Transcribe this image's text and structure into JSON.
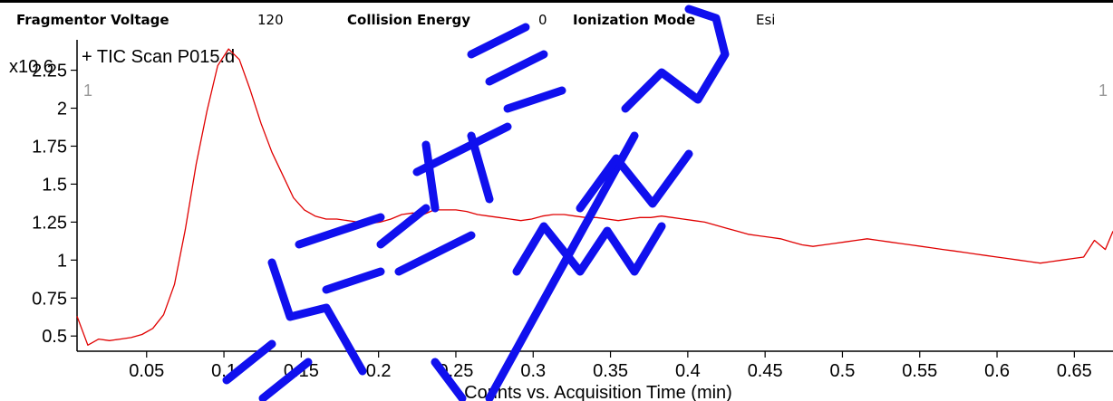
{
  "header": {
    "fields": [
      {
        "label": "Fragmentor Voltage",
        "value": "120"
      },
      {
        "label": "Collision Energy",
        "value": "0"
      },
      {
        "label": "Ionization Mode",
        "value": "Esi"
      }
    ]
  },
  "chart_data": {
    "type": "line",
    "title": "+ TIC Scan P015.d",
    "xlabel": "Counts vs. Acquisition Time (min)",
    "ylabel": "",
    "y_multiplier": "x10 6",
    "xlim": [
      0.005,
      0.675
    ],
    "ylim": [
      0.4,
      2.45
    ],
    "xticks": [
      0.05,
      0.1,
      0.15,
      0.2,
      0.25,
      0.3,
      0.35,
      0.4,
      0.45,
      0.5,
      0.55,
      0.6,
      0.65
    ],
    "xtick_labels": [
      "0.05",
      "0.1",
      "0.15",
      "0.2",
      "0.25",
      "0.3",
      "0.35",
      "0.4",
      "0.45",
      "0.5",
      "0.55",
      "0.6",
      "0.65"
    ],
    "yticks": [
      0.5,
      0.75,
      1,
      1.25,
      1.5,
      1.75,
      2,
      2.25
    ],
    "ytick_labels": [
      "0.5",
      "0.75",
      "1",
      "1.25",
      "1.5",
      "1.75",
      "2",
      "2.25"
    ],
    "marker_labels": [
      "1",
      "1"
    ],
    "grid": false,
    "line_color": "#e00000",
    "series": [
      {
        "x": [
          0.005,
          0.012,
          0.019,
          0.026,
          0.033,
          0.04,
          0.047,
          0.054,
          0.061,
          0.068,
          0.075,
          0.082,
          0.089,
          0.096,
          0.103,
          0.11,
          0.117,
          0.124,
          0.131,
          0.138,
          0.145,
          0.152,
          0.159,
          0.166,
          0.173,
          0.18,
          0.187,
          0.194,
          0.201,
          0.208,
          0.215,
          0.222,
          0.229,
          0.236,
          0.243,
          0.25,
          0.257,
          0.264,
          0.271,
          0.278,
          0.285,
          0.292,
          0.299,
          0.306,
          0.313,
          0.32,
          0.327,
          0.334,
          0.341,
          0.348,
          0.355,
          0.362,
          0.369,
          0.376,
          0.383,
          0.39,
          0.397,
          0.404,
          0.411,
          0.418,
          0.425,
          0.432,
          0.439,
          0.446,
          0.453,
          0.46,
          0.467,
          0.474,
          0.481,
          0.488,
          0.495,
          0.502,
          0.509,
          0.516,
          0.523,
          0.53,
          0.537,
          0.544,
          0.551,
          0.558,
          0.565,
          0.572,
          0.579,
          0.586,
          0.593,
          0.6,
          0.607,
          0.614,
          0.621,
          0.628,
          0.635,
          0.642,
          0.649,
          0.656,
          0.663,
          0.67,
          0.675
        ],
        "y": [
          0.63,
          0.44,
          0.48,
          0.47,
          0.48,
          0.49,
          0.51,
          0.55,
          0.64,
          0.84,
          1.2,
          1.63,
          1.98,
          2.28,
          2.39,
          2.32,
          2.12,
          1.9,
          1.71,
          1.56,
          1.41,
          1.33,
          1.29,
          1.27,
          1.27,
          1.26,
          1.25,
          1.24,
          1.25,
          1.27,
          1.3,
          1.31,
          1.3,
          1.33,
          1.33,
          1.33,
          1.32,
          1.3,
          1.29,
          1.28,
          1.27,
          1.26,
          1.27,
          1.29,
          1.3,
          1.3,
          1.29,
          1.28,
          1.28,
          1.27,
          1.26,
          1.27,
          1.28,
          1.28,
          1.29,
          1.28,
          1.27,
          1.26,
          1.25,
          1.23,
          1.21,
          1.19,
          1.17,
          1.16,
          1.15,
          1.14,
          1.12,
          1.1,
          1.09,
          1.1,
          1.11,
          1.12,
          1.13,
          1.14,
          1.13,
          1.12,
          1.11,
          1.1,
          1.09,
          1.08,
          1.07,
          1.06,
          1.05,
          1.04,
          1.03,
          1.02,
          1.01,
          1.0,
          0.99,
          0.98,
          0.99,
          1.0,
          1.01,
          1.02,
          1.13,
          1.07,
          1.19
        ]
      }
    ]
  }
}
